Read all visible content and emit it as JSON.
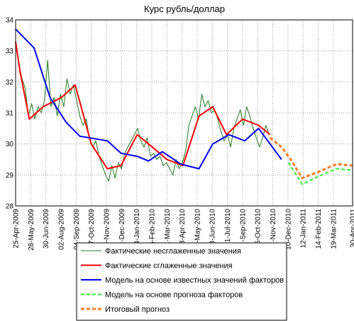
{
  "chart_data": {
    "type": "line",
    "title": "Курс рубль/доллар",
    "xlim": [
      0,
      735
    ],
    "xticks": [
      {
        "value": 0,
        "label": "25-Apr-2009"
      },
      {
        "value": 33,
        "label": "28-May-2009"
      },
      {
        "value": 66,
        "label": "30-Jun-2009"
      },
      {
        "value": 99,
        "label": "02-Aug-2009"
      },
      {
        "value": 132,
        "label": "04-Sep-2009"
      },
      {
        "value": 165,
        "label": "07-Oct-2009"
      },
      {
        "value": 198,
        "label": "09-Nov-2009"
      },
      {
        "value": 231,
        "label": "12-Dec-2009"
      },
      {
        "value": 264,
        "label": "14-Jan-2010"
      },
      {
        "value": 297,
        "label": "16-Feb-2010"
      },
      {
        "value": 330,
        "label": "21-Mar-2010"
      },
      {
        "value": 363,
        "label": "23-Apr-2010"
      },
      {
        "value": 396,
        "label": "26-May-2010"
      },
      {
        "value": 429,
        "label": "28-Jun-2010"
      },
      {
        "value": 462,
        "label": "31-Jul-2010"
      },
      {
        "value": 495,
        "label": "02-Sep-2010"
      },
      {
        "value": 528,
        "label": "05-Oct-2010"
      },
      {
        "value": 561,
        "label": "07-Nov-2010"
      },
      {
        "value": 594,
        "label": "10-Dec-2010"
      },
      {
        "value": 627,
        "label": "12-Jan-2011"
      },
      {
        "value": 660,
        "label": "14-Feb-2011"
      },
      {
        "value": 693,
        "label": "19-Mar-2011"
      },
      {
        "value": 735,
        "label": "30-Apr-2011"
      }
    ],
    "ylim": [
      28,
      34
    ],
    "yticks": [
      28,
      29,
      30,
      31,
      32,
      33,
      34
    ],
    "grid": true,
    "series": [
      {
        "name": "Фактические несглаженные значения",
        "color": "#1f7a1f",
        "linestyle": "solid",
        "width": 1,
        "x": [
          0,
          7,
          14,
          21,
          28,
          35,
          42,
          49,
          56,
          63,
          70,
          77,
          84,
          91,
          98,
          105,
          112,
          119,
          126,
          133,
          140,
          147,
          154,
          161,
          168,
          175,
          182,
          189,
          196,
          203,
          210,
          217,
          224,
          231,
          238,
          245,
          252,
          259,
          266,
          273,
          280,
          287,
          294,
          301,
          308,
          315,
          322,
          329,
          336,
          343,
          350,
          357,
          364,
          371,
          378,
          385,
          392,
          399,
          406,
          413,
          420,
          427,
          434,
          441,
          448,
          455,
          462,
          469,
          476,
          483,
          490,
          497,
          504,
          511,
          518,
          525,
          532,
          539,
          546,
          553
        ],
        "values": [
          33.3,
          32.6,
          32.1,
          31.8,
          30.9,
          31.3,
          30.8,
          31.2,
          31.0,
          31.4,
          32.7,
          31.2,
          31.5,
          30.9,
          31.6,
          31.2,
          32.1,
          31.6,
          31.9,
          31.4,
          30.9,
          30.6,
          30.8,
          30.2,
          29.9,
          30.1,
          29.6,
          29.3,
          29.0,
          28.8,
          29.3,
          28.9,
          29.4,
          29.2,
          29.7,
          29.9,
          30.1,
          30.3,
          30.5,
          30.1,
          29.9,
          30.2,
          29.6,
          29.7,
          29.5,
          29.6,
          29.3,
          29.4,
          29.2,
          29.0,
          29.5,
          29.2,
          29.4,
          29.8,
          30.6,
          30.9,
          31.2,
          30.8,
          31.6,
          31.2,
          31.4,
          31.0,
          31.1,
          30.8,
          30.4,
          30.1,
          30.3,
          29.9,
          30.5,
          30.8,
          31.1,
          30.6,
          31.2,
          30.9,
          30.5,
          30.2,
          29.9,
          30.2,
          30.6,
          30.3
        ]
      },
      {
        "name": "Фактические сглаженные значения",
        "color": "#ff0000",
        "linestyle": "solid",
        "width": 2,
        "x": [
          0,
          10,
          30,
          60,
          100,
          130,
          165,
          200,
          230,
          265,
          290,
          330,
          365,
          400,
          430,
          460,
          495,
          530,
          555
        ],
        "values": [
          33.3,
          32.3,
          30.8,
          31.2,
          31.5,
          31.9,
          30.0,
          29.2,
          29.3,
          30.3,
          30.0,
          29.5,
          29.3,
          30.9,
          31.2,
          30.3,
          30.8,
          30.6,
          30.3
        ]
      },
      {
        "name": "Модель на основе известных значений факторов",
        "color": "#0000ff",
        "linestyle": "solid",
        "width": 2,
        "x": [
          0,
          40,
          75,
          110,
          140,
          200,
          230,
          265,
          290,
          320,
          360,
          400,
          430,
          465,
          500,
          530,
          580
        ],
        "values": [
          33.7,
          33.1,
          31.5,
          30.7,
          30.25,
          30.1,
          29.7,
          29.6,
          29.45,
          29.75,
          29.35,
          29.2,
          30.0,
          30.3,
          30.1,
          30.5,
          29.5
        ]
      },
      {
        "name": "Модель на основе прогноза факторов",
        "color": "#33ee33",
        "linestyle": "dashed",
        "width": 2,
        "x": [
          595,
          625,
          660,
          700,
          735
        ],
        "values": [
          29.4,
          28.7,
          28.95,
          29.2,
          29.15
        ]
      },
      {
        "name": "Итоговый прогноз",
        "color": "#ff7f27",
        "linestyle": "dashed",
        "width": 3,
        "x": [
          555,
          580,
          600,
          625,
          660,
          700,
          735
        ],
        "values": [
          30.2,
          29.9,
          29.5,
          28.9,
          29.1,
          29.35,
          29.3
        ]
      }
    ]
  }
}
